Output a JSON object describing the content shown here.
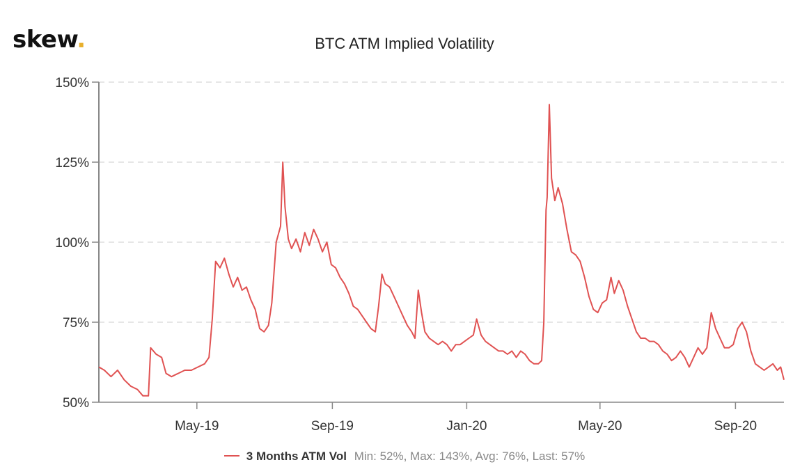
{
  "brand": {
    "name": "skew",
    "dot": ".",
    "dot_color": "#e8b02e"
  },
  "chart_data": {
    "type": "line",
    "title": "BTC ATM Implied Volatility",
    "xlabel": "",
    "ylabel": "",
    "x_range": [
      "2019-02-01",
      "2020-10-15"
    ],
    "ylim": [
      50,
      150
    ],
    "y_ticks": [
      50,
      75,
      100,
      125,
      150
    ],
    "y_tick_labels": [
      "50%",
      "75%",
      "100%",
      "125%",
      "150%"
    ],
    "x_ticks": [
      "2019-05-01",
      "2019-09-01",
      "2020-01-01",
      "2020-05-01",
      "2020-09-01"
    ],
    "x_tick_labels": [
      "May-19",
      "Sep-19",
      "Jan-20",
      "May-20",
      "Sep-20"
    ],
    "grid": "horizontal dashed",
    "legend": "bottom-center",
    "series": [
      {
        "name": "3 Months ATM Vol",
        "color": "#e05252",
        "points": [
          [
            "2019-02-01",
            61
          ],
          [
            "2019-02-06",
            60
          ],
          [
            "2019-02-12",
            58
          ],
          [
            "2019-02-18",
            60
          ],
          [
            "2019-02-24",
            57
          ],
          [
            "2019-03-02",
            55
          ],
          [
            "2019-03-08",
            54
          ],
          [
            "2019-03-13",
            52
          ],
          [
            "2019-03-18",
            52
          ],
          [
            "2019-03-20",
            67
          ],
          [
            "2019-03-25",
            65
          ],
          [
            "2019-03-30",
            64
          ],
          [
            "2019-04-03",
            59
          ],
          [
            "2019-04-08",
            58
          ],
          [
            "2019-04-14",
            59
          ],
          [
            "2019-04-20",
            60
          ],
          [
            "2019-04-26",
            60
          ],
          [
            "2019-05-02",
            61
          ],
          [
            "2019-05-08",
            62
          ],
          [
            "2019-05-12",
            64
          ],
          [
            "2019-05-15",
            76
          ],
          [
            "2019-05-18",
            94
          ],
          [
            "2019-05-22",
            92
          ],
          [
            "2019-05-26",
            95
          ],
          [
            "2019-05-30",
            90
          ],
          [
            "2019-06-03",
            86
          ],
          [
            "2019-06-07",
            89
          ],
          [
            "2019-06-11",
            85
          ],
          [
            "2019-06-15",
            86
          ],
          [
            "2019-06-19",
            82
          ],
          [
            "2019-06-23",
            79
          ],
          [
            "2019-06-27",
            73
          ],
          [
            "2019-07-01",
            72
          ],
          [
            "2019-07-05",
            74
          ],
          [
            "2019-07-08",
            81
          ],
          [
            "2019-07-12",
            100
          ],
          [
            "2019-07-16",
            105
          ],
          [
            "2019-07-18",
            125
          ],
          [
            "2019-07-20",
            111
          ],
          [
            "2019-07-23",
            101
          ],
          [
            "2019-07-26",
            98
          ],
          [
            "2019-07-30",
            101
          ],
          [
            "2019-08-03",
            97
          ],
          [
            "2019-08-07",
            103
          ],
          [
            "2019-08-11",
            99
          ],
          [
            "2019-08-15",
            104
          ],
          [
            "2019-08-19",
            101
          ],
          [
            "2019-08-23",
            97
          ],
          [
            "2019-08-27",
            100
          ],
          [
            "2019-08-31",
            93
          ],
          [
            "2019-09-04",
            92
          ],
          [
            "2019-09-08",
            89
          ],
          [
            "2019-09-12",
            87
          ],
          [
            "2019-09-16",
            84
          ],
          [
            "2019-09-20",
            80
          ],
          [
            "2019-09-24",
            79
          ],
          [
            "2019-09-28",
            77
          ],
          [
            "2019-10-02",
            75
          ],
          [
            "2019-10-06",
            73
          ],
          [
            "2019-10-10",
            72
          ],
          [
            "2019-10-13",
            80
          ],
          [
            "2019-10-16",
            90
          ],
          [
            "2019-10-19",
            87
          ],
          [
            "2019-10-23",
            86
          ],
          [
            "2019-10-27",
            83
          ],
          [
            "2019-10-31",
            80
          ],
          [
            "2019-11-04",
            77
          ],
          [
            "2019-11-08",
            74
          ],
          [
            "2019-11-12",
            72
          ],
          [
            "2019-11-15",
            70
          ],
          [
            "2019-11-18",
            85
          ],
          [
            "2019-11-21",
            78
          ],
          [
            "2019-11-24",
            72
          ],
          [
            "2019-11-28",
            70
          ],
          [
            "2019-12-02",
            69
          ],
          [
            "2019-12-06",
            68
          ],
          [
            "2019-12-10",
            69
          ],
          [
            "2019-12-14",
            68
          ],
          [
            "2019-12-18",
            66
          ],
          [
            "2019-12-22",
            68
          ],
          [
            "2019-12-26",
            68
          ],
          [
            "2019-12-30",
            69
          ],
          [
            "2020-01-03",
            70
          ],
          [
            "2020-01-07",
            71
          ],
          [
            "2020-01-10",
            76
          ],
          [
            "2020-01-14",
            71
          ],
          [
            "2020-01-18",
            69
          ],
          [
            "2020-01-22",
            68
          ],
          [
            "2020-01-26",
            67
          ],
          [
            "2020-01-30",
            66
          ],
          [
            "2020-02-03",
            66
          ],
          [
            "2020-02-07",
            65
          ],
          [
            "2020-02-11",
            66
          ],
          [
            "2020-02-15",
            64
          ],
          [
            "2020-02-19",
            66
          ],
          [
            "2020-02-23",
            65
          ],
          [
            "2020-02-27",
            63
          ],
          [
            "2020-03-02",
            62
          ],
          [
            "2020-03-06",
            62
          ],
          [
            "2020-03-09",
            63
          ],
          [
            "2020-03-11",
            75
          ],
          [
            "2020-03-13",
            110
          ],
          [
            "2020-03-14",
            114
          ],
          [
            "2020-03-16",
            143
          ],
          [
            "2020-03-18",
            120
          ],
          [
            "2020-03-21",
            113
          ],
          [
            "2020-03-24",
            117
          ],
          [
            "2020-03-28",
            112
          ],
          [
            "2020-04-01",
            104
          ],
          [
            "2020-04-05",
            97
          ],
          [
            "2020-04-09",
            96
          ],
          [
            "2020-04-13",
            94
          ],
          [
            "2020-04-17",
            89
          ],
          [
            "2020-04-21",
            83
          ],
          [
            "2020-04-25",
            79
          ],
          [
            "2020-04-29",
            78
          ],
          [
            "2020-05-03",
            81
          ],
          [
            "2020-05-07",
            82
          ],
          [
            "2020-05-11",
            89
          ],
          [
            "2020-05-14",
            84
          ],
          [
            "2020-05-18",
            88
          ],
          [
            "2020-05-22",
            85
          ],
          [
            "2020-05-26",
            80
          ],
          [
            "2020-05-30",
            76
          ],
          [
            "2020-06-03",
            72
          ],
          [
            "2020-06-07",
            70
          ],
          [
            "2020-06-11",
            70
          ],
          [
            "2020-06-15",
            69
          ],
          [
            "2020-06-19",
            69
          ],
          [
            "2020-06-23",
            68
          ],
          [
            "2020-06-27",
            66
          ],
          [
            "2020-07-01",
            65
          ],
          [
            "2020-07-05",
            63
          ],
          [
            "2020-07-09",
            64
          ],
          [
            "2020-07-13",
            66
          ],
          [
            "2020-07-17",
            64
          ],
          [
            "2020-07-21",
            61
          ],
          [
            "2020-07-25",
            64
          ],
          [
            "2020-07-29",
            67
          ],
          [
            "2020-08-02",
            65
          ],
          [
            "2020-08-06",
            67
          ],
          [
            "2020-08-10",
            78
          ],
          [
            "2020-08-14",
            73
          ],
          [
            "2020-08-18",
            70
          ],
          [
            "2020-08-22",
            67
          ],
          [
            "2020-08-26",
            67
          ],
          [
            "2020-08-30",
            68
          ],
          [
            "2020-09-03",
            73
          ],
          [
            "2020-09-07",
            75
          ],
          [
            "2020-09-11",
            72
          ],
          [
            "2020-09-15",
            66
          ],
          [
            "2020-09-19",
            62
          ],
          [
            "2020-09-23",
            61
          ],
          [
            "2020-09-27",
            60
          ],
          [
            "2020-10-01",
            61
          ],
          [
            "2020-10-05",
            62
          ],
          [
            "2020-10-09",
            60
          ],
          [
            "2020-10-12",
            61
          ],
          [
            "2020-10-15",
            57
          ]
        ]
      }
    ]
  },
  "legend": {
    "series_name": "3 Months ATM Vol",
    "min_label": "Min:",
    "min_value": "52%",
    "max_label": "Max:",
    "max_value": "143%",
    "avg_label": "Avg:",
    "avg_value": "76%",
    "last_label": "Last:",
    "last_value": "57%"
  }
}
